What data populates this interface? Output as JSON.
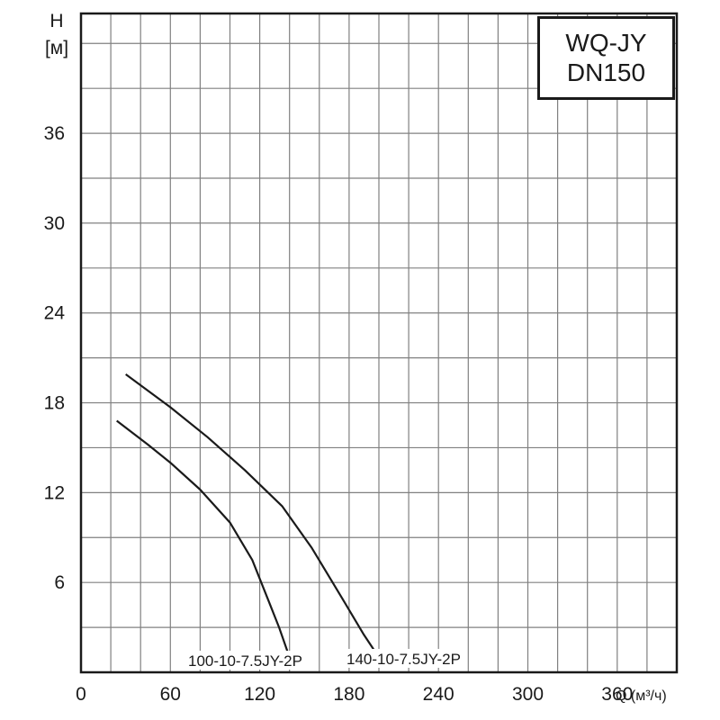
{
  "chart_data": {
    "type": "line",
    "title_lines": [
      "WQ-JY",
      "DN150"
    ],
    "ylabel_lines": [
      "H",
      "[м]"
    ],
    "xlabel": "Q (м³/ч)",
    "xlim": [
      0,
      400
    ],
    "ylim": [
      0,
      44
    ],
    "x_ticks": [
      0,
      60,
      120,
      180,
      240,
      300,
      360
    ],
    "y_ticks": [
      6,
      12,
      18,
      24,
      30,
      36
    ],
    "x_tick_labels": [
      "0",
      "60",
      "120",
      "180",
      "240",
      "300",
      "360"
    ],
    "y_tick_labels": [
      "6",
      "12",
      "18",
      "24",
      "30",
      "36"
    ],
    "x_grid_step": 20,
    "y_grid_step": 3,
    "grid": true,
    "colors": {
      "curve": "#1a1a1a",
      "grid": "#808080",
      "frame": "#1a1a1a",
      "text": "#1a1a1a"
    },
    "series": [
      {
        "name": "100-10-7.5JY-2P",
        "points": [
          [
            24,
            16.8
          ],
          [
            45,
            15.2
          ],
          [
            60,
            14.0
          ],
          [
            80,
            12.2
          ],
          [
            100,
            10.0
          ],
          [
            115,
            7.5
          ],
          [
            125,
            5.0
          ],
          [
            133,
            3.0
          ],
          [
            140,
            1.0
          ]
        ]
      },
      {
        "name": "140-10-7.5JY-2P",
        "points": [
          [
            30,
            19.9
          ],
          [
            60,
            17.7
          ],
          [
            85,
            15.7
          ],
          [
            110,
            13.5
          ],
          [
            135,
            11.1
          ],
          [
            155,
            8.3
          ],
          [
            175,
            5.0
          ],
          [
            190,
            2.5
          ],
          [
            200,
            1.0
          ]
        ]
      }
    ]
  }
}
